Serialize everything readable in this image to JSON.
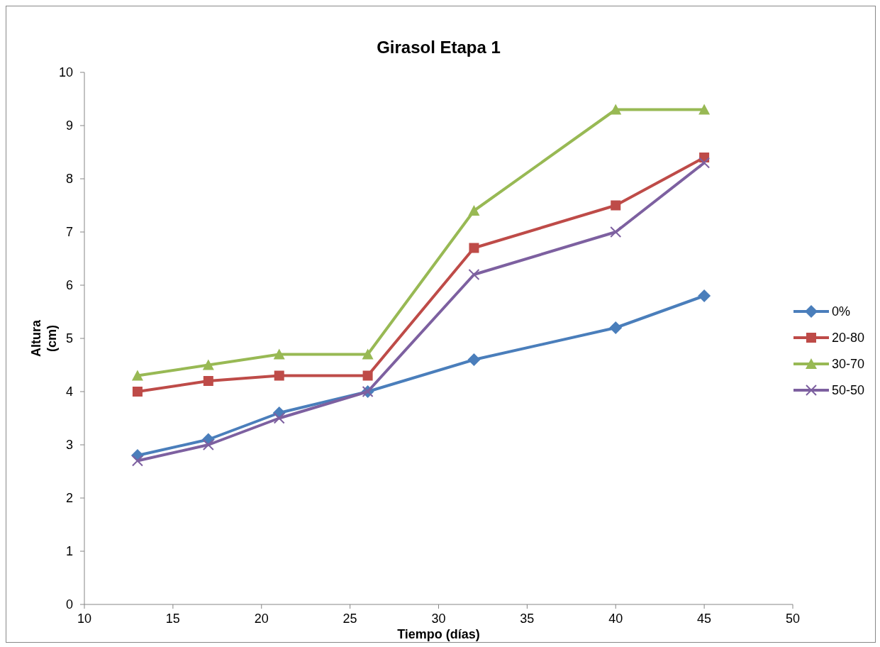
{
  "chart_data": {
    "type": "line",
    "title": "Girasol Etapa 1",
    "xlabel": "Tiempo (días)",
    "ylabel": "Altura (cm)",
    "x": [
      13,
      17,
      21,
      26,
      32,
      40,
      45
    ],
    "xlim": [
      10,
      50
    ],
    "xticks": [
      10,
      15,
      20,
      25,
      30,
      35,
      40,
      45,
      50
    ],
    "ylim": [
      0,
      10
    ],
    "yticks": [
      0,
      1,
      2,
      3,
      4,
      5,
      6,
      7,
      8,
      9,
      10
    ],
    "grid": false,
    "legend": "right",
    "line_style": "solid",
    "series": [
      {
        "name": "0%",
        "color": "#4a7ebb",
        "marker": "diamond",
        "values": [
          2.8,
          3.1,
          3.6,
          4.0,
          4.6,
          5.2,
          5.8
        ]
      },
      {
        "name": "20-80",
        "color": "#be4b48",
        "marker": "square",
        "values": [
          4.0,
          4.2,
          4.3,
          4.3,
          6.7,
          7.5,
          8.4
        ]
      },
      {
        "name": "30-70",
        "color": "#98b954",
        "marker": "triangle",
        "values": [
          4.3,
          4.5,
          4.7,
          4.7,
          7.4,
          9.3,
          9.3
        ]
      },
      {
        "name": "50-50",
        "color": "#7d60a0",
        "marker": "cross",
        "values": [
          2.7,
          3.0,
          3.5,
          4.0,
          6.2,
          7.0,
          8.3
        ]
      }
    ]
  }
}
